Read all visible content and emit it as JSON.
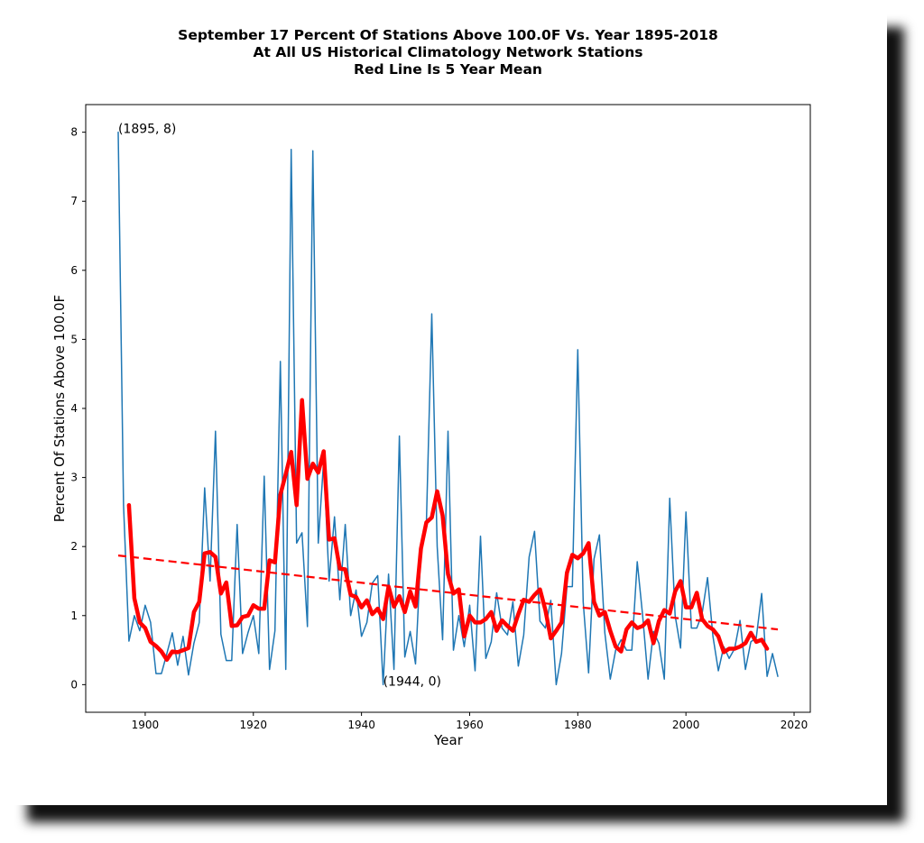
{
  "chart_data": {
    "type": "line",
    "title": [
      "September 17 Percent Of Stations Above 100.0F Vs. Year 1895-2018",
      "At All US Historical Climatology Network Stations",
      "Red Line Is 5 Year Mean"
    ],
    "xlabel": "Year",
    "ylabel": "Percent Of Stations Above 100.0F",
    "xlim": [
      1889,
      2023
    ],
    "ylim": [
      -0.4,
      8.4
    ],
    "xticks": [
      1900,
      1920,
      1940,
      1960,
      1980,
      2000,
      2020
    ],
    "yticks": [
      0,
      1,
      2,
      3,
      4,
      5,
      6,
      7,
      8
    ],
    "grid": false,
    "legend": "none",
    "annotations": [
      {
        "text": "(1895, 8)",
        "x": 1895,
        "y": 8
      },
      {
        "text": "(1944, 0)",
        "x": 1944,
        "y": 0
      }
    ],
    "series": [
      {
        "name": "Percent above 100.0F",
        "color": "#1f77b4",
        "style": "solid",
        "x_start": 1895,
        "values": [
          8.0,
          2.6,
          0.63,
          1.0,
          0.78,
          1.15,
          0.9,
          0.16,
          0.16,
          0.45,
          0.75,
          0.28,
          0.7,
          0.14,
          0.6,
          0.9,
          2.85,
          1.5,
          3.67,
          0.73,
          0.35,
          0.35,
          2.32,
          0.45,
          0.75,
          1.0,
          0.45,
          3.02,
          0.22,
          0.78,
          4.68,
          0.22,
          7.75,
          2.05,
          2.2,
          0.84,
          7.73,
          2.05,
          3.25,
          1.5,
          2.43,
          1.23,
          2.32,
          1.0,
          1.37,
          0.7,
          0.9,
          1.47,
          1.58,
          0.0,
          1.6,
          0.22,
          3.6,
          0.4,
          0.77,
          0.3,
          1.95,
          2.32,
          5.37,
          2.0,
          0.65,
          3.67,
          0.5,
          1.0,
          0.55,
          1.15,
          0.2,
          2.15,
          0.38,
          0.62,
          1.33,
          0.82,
          0.72,
          1.2,
          0.27,
          0.72,
          1.85,
          2.22,
          0.92,
          0.82,
          1.22,
          0.0,
          0.45,
          1.42,
          1.42,
          4.85,
          1.2,
          0.17,
          1.82,
          2.17,
          0.75,
          0.08,
          0.5,
          0.65,
          0.5,
          0.5,
          1.78,
          1.0,
          0.08,
          0.77,
          0.6,
          0.08,
          2.7,
          1.0,
          0.53,
          2.5,
          0.82,
          0.82,
          1.03,
          1.55,
          0.7,
          0.2,
          0.55,
          0.38,
          0.52,
          0.93,
          0.22,
          0.62,
          0.68,
          1.32,
          0.12,
          0.45,
          0.12
        ]
      },
      {
        "name": "5 Year Mean",
        "color": "#ff0000",
        "style": "thick",
        "x_start": 1897,
        "values": [
          2.6,
          1.25,
          0.9,
          0.82,
          0.62,
          0.56,
          0.48,
          0.36,
          0.48,
          0.47,
          0.5,
          0.53,
          1.05,
          1.2,
          1.9,
          1.92,
          1.85,
          1.32,
          1.48,
          0.85,
          0.86,
          0.98,
          1.0,
          1.15,
          1.1,
          1.1,
          1.8,
          1.77,
          2.75,
          3.05,
          3.37,
          2.6,
          4.12,
          2.98,
          3.2,
          3.07,
          3.38,
          2.1,
          2.12,
          1.68,
          1.67,
          1.3,
          1.27,
          1.12,
          1.22,
          1.02,
          1.1,
          0.95,
          1.42,
          1.13,
          1.28,
          1.05,
          1.35,
          1.13,
          1.97,
          2.35,
          2.42,
          2.8,
          2.45,
          1.6,
          1.32,
          1.38,
          0.7,
          1.0,
          0.9,
          0.9,
          0.95,
          1.05,
          0.78,
          0.93,
          0.85,
          0.78,
          1.02,
          1.23,
          1.2,
          1.3,
          1.38,
          1.08,
          0.67,
          0.78,
          0.9,
          1.62,
          1.88,
          1.83,
          1.9,
          2.05,
          1.2,
          1.0,
          1.05,
          0.78,
          0.55,
          0.48,
          0.8,
          0.9,
          0.82,
          0.85,
          0.93,
          0.6,
          0.92,
          1.08,
          1.03,
          1.35,
          1.5,
          1.12,
          1.12,
          1.33,
          0.95,
          0.85,
          0.8,
          0.7,
          0.47,
          0.52,
          0.52,
          0.55,
          0.6,
          0.75,
          0.62,
          0.65,
          0.52
        ]
      },
      {
        "name": "Trend",
        "color": "#ff0000",
        "style": "dashed",
        "x": [
          1895,
          2017
        ],
        "values": [
          1.87,
          0.8
        ]
      }
    ]
  }
}
